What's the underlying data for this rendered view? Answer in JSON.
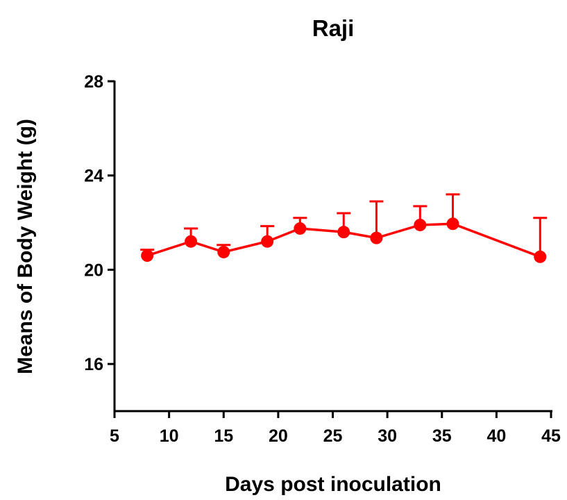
{
  "chart_data": {
    "type": "line",
    "title": "Raji",
    "xlabel": "Days post inoculation",
    "ylabel": "Means of Body Weight (g)",
    "xlim": [
      5,
      45
    ],
    "ylim": [
      14,
      28
    ],
    "x_ticks": [
      5,
      10,
      15,
      20,
      25,
      30,
      35,
      40,
      45
    ],
    "y_ticks": [
      16,
      20,
      24,
      28
    ],
    "grid": false,
    "color": "#ff0000",
    "series": [
      {
        "x": [
          8,
          12,
          15,
          19,
          22,
          26,
          29,
          33,
          36,
          44
        ],
        "y": [
          20.6,
          21.2,
          20.75,
          21.2,
          21.75,
          21.6,
          21.35,
          21.9,
          21.95,
          20.55
        ],
        "error_upper": [
          0.25,
          0.55,
          0.3,
          0.65,
          0.45,
          0.8,
          1.55,
          0.8,
          1.25,
          1.65
        ]
      }
    ]
  }
}
